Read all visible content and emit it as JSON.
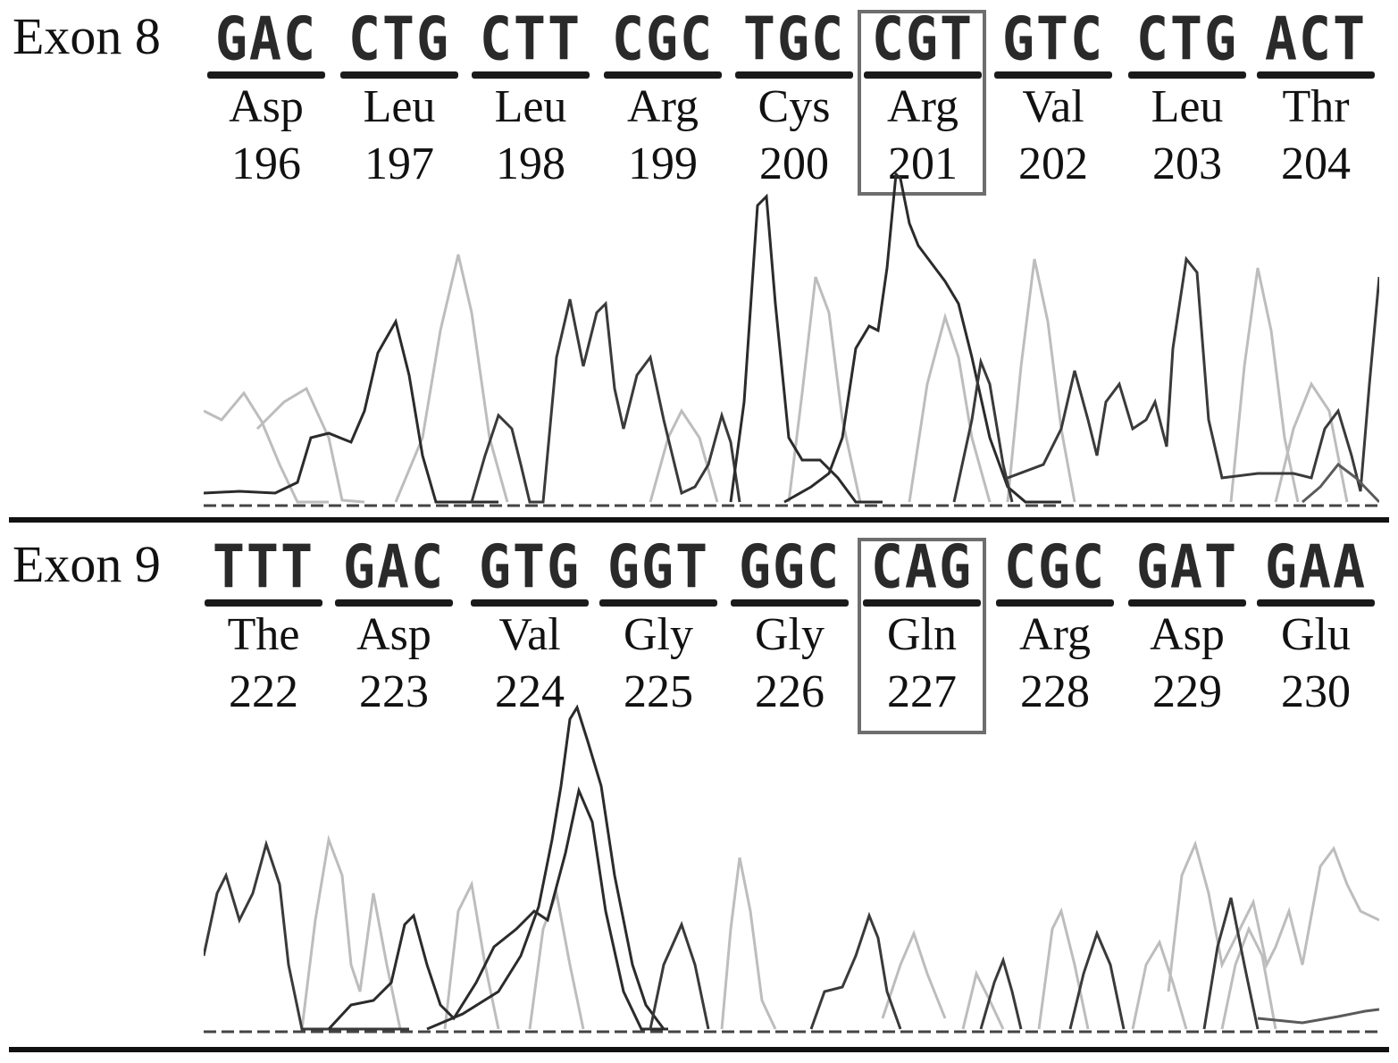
{
  "panels": [
    {
      "id": "exon8",
      "label": "Exon 8",
      "codons": [
        {
          "seq": "GAC",
          "aa": "Asp",
          "num": "196"
        },
        {
          "seq": "CTG",
          "aa": "Leu",
          "num": "197"
        },
        {
          "seq": "CTT",
          "aa": "Leu",
          "num": "198"
        },
        {
          "seq": "CGC",
          "aa": "Arg",
          "num": "199"
        },
        {
          "seq": "TGC",
          "aa": "Cys",
          "num": "200"
        },
        {
          "seq": "CGT",
          "aa": "Arg",
          "num": "201"
        },
        {
          "seq": "GTC",
          "aa": "Val",
          "num": "202"
        },
        {
          "seq": "CTG",
          "aa": "Leu",
          "num": "203"
        },
        {
          "seq": "ACT",
          "aa": "Thr",
          "num": "204"
        }
      ],
      "highlighted_codon": "201"
    },
    {
      "id": "exon9",
      "label": "Exon 9",
      "codons": [
        {
          "seq": "TTT",
          "aa": "The",
          "num": "222"
        },
        {
          "seq": "GAC",
          "aa": "Asp",
          "num": "223"
        },
        {
          "seq": "GTG",
          "aa": "Val",
          "num": "224"
        },
        {
          "seq": "GGT",
          "aa": "Gly",
          "num": "225"
        },
        {
          "seq": "GGC",
          "aa": "Gly",
          "num": "226"
        },
        {
          "seq": "CAG",
          "aa": "Gln",
          "num": "227"
        },
        {
          "seq": "CGC",
          "aa": "Arg",
          "num": "228"
        },
        {
          "seq": "GAT",
          "aa": "Asp",
          "num": "229"
        },
        {
          "seq": "GAA",
          "aa": "Glu",
          "num": "230"
        }
      ],
      "highlighted_codon": "227"
    }
  ],
  "trace_colors": {
    "dark": "#2b2b2b",
    "mid": "#5a5a5a",
    "light": "#bdbdbd",
    "baseline": "#444444"
  }
}
